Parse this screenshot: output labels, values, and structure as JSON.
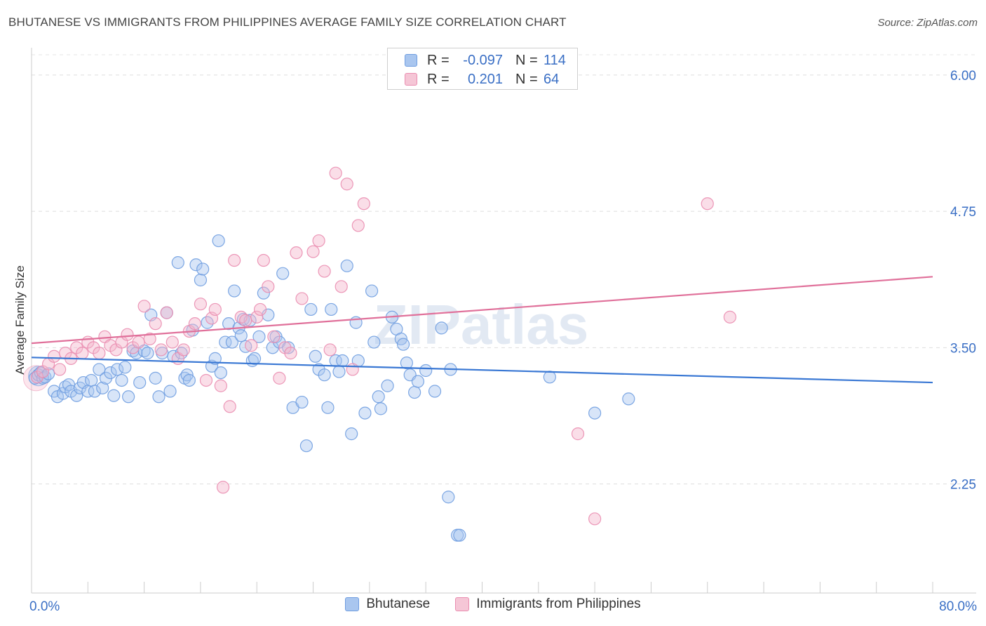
{
  "title": "BHUTANESE VS IMMIGRANTS FROM PHILIPPINES AVERAGE FAMILY SIZE CORRELATION CHART",
  "source": "Source: ZipAtlas.com",
  "watermark": "ZIPatlas",
  "legend_stats": {
    "rows": [
      {
        "r_label": "R =",
        "r_value": "-0.097",
        "n_label": "N =",
        "n_value": "114"
      },
      {
        "r_label": "R =",
        "r_value": "0.201",
        "n_label": "N =",
        "n_value": "64"
      }
    ]
  },
  "colors": {
    "blue_fill": "#a9c6ef",
    "blue_stroke": "#6f9de0",
    "blue_line": "#3a78d4",
    "pink_fill": "#f5b6cb",
    "pink_stroke": "#ea8db0",
    "pink_line": "#e0709a",
    "grid": "#dddddd",
    "tick_label": "#3a6fc5"
  },
  "chart_data": {
    "type": "scatter",
    "xlabel": "",
    "ylabel": "Average Family Size",
    "xlim": [
      0,
      80
    ],
    "ylim": [
      1.25,
      6.25
    ],
    "x_tick_labels": [
      {
        "value": 0,
        "label": "0.0%"
      },
      {
        "value": 80,
        "label": "80.0%"
      }
    ],
    "y_ticks": [
      {
        "value": 2.25,
        "label": "2.25"
      },
      {
        "value": 3.5,
        "label": "3.50"
      },
      {
        "value": 4.75,
        "label": "4.75"
      },
      {
        "value": 6.0,
        "label": "6.00"
      }
    ],
    "grid": "horizontal-dashed",
    "legend_position": "bottom-center",
    "series": [
      {
        "name": "Bhutanese",
        "color_key": "blue",
        "trend": {
          "x": [
            0,
            80
          ],
          "y": [
            3.41,
            3.18
          ]
        },
        "points": [
          [
            0.3,
            3.22
          ],
          [
            0.6,
            3.25
          ],
          [
            0.8,
            3.27
          ],
          [
            1.0,
            3.22
          ],
          [
            1.2,
            3.23
          ],
          [
            1.5,
            3.26
          ],
          [
            2.0,
            3.1
          ],
          [
            2.3,
            3.05
          ],
          [
            2.8,
            3.08
          ],
          [
            3.0,
            3.14
          ],
          [
            3.3,
            3.16
          ],
          [
            3.5,
            3.1
          ],
          [
            4.0,
            3.06
          ],
          [
            4.3,
            3.13
          ],
          [
            4.6,
            3.18
          ],
          [
            5.0,
            3.1
          ],
          [
            5.3,
            3.2
          ],
          [
            5.6,
            3.1
          ],
          [
            6.0,
            3.3
          ],
          [
            6.3,
            3.13
          ],
          [
            6.6,
            3.22
          ],
          [
            7.0,
            3.27
          ],
          [
            7.3,
            3.06
          ],
          [
            7.6,
            3.3
          ],
          [
            8.0,
            3.2
          ],
          [
            8.3,
            3.32
          ],
          [
            8.6,
            3.05
          ],
          [
            9.0,
            3.47
          ],
          [
            9.3,
            3.45
          ],
          [
            9.6,
            3.18
          ],
          [
            10.0,
            3.47
          ],
          [
            10.3,
            3.45
          ],
          [
            10.6,
            3.8
          ],
          [
            11.0,
            3.22
          ],
          [
            11.3,
            3.05
          ],
          [
            11.6,
            3.45
          ],
          [
            12.0,
            3.82
          ],
          [
            12.3,
            3.1
          ],
          [
            12.6,
            3.42
          ],
          [
            13.0,
            4.28
          ],
          [
            13.3,
            3.45
          ],
          [
            13.6,
            3.22
          ],
          [
            13.8,
            3.25
          ],
          [
            14.0,
            3.2
          ],
          [
            14.3,
            3.66
          ],
          [
            14.6,
            4.26
          ],
          [
            15.0,
            4.12
          ],
          [
            15.2,
            4.22
          ],
          [
            15.6,
            3.73
          ],
          [
            16.0,
            3.33
          ],
          [
            16.3,
            3.4
          ],
          [
            16.6,
            4.48
          ],
          [
            16.8,
            3.27
          ],
          [
            17.2,
            3.55
          ],
          [
            17.5,
            3.72
          ],
          [
            17.8,
            3.55
          ],
          [
            18.0,
            4.02
          ],
          [
            18.4,
            3.68
          ],
          [
            18.6,
            3.61
          ],
          [
            18.8,
            3.76
          ],
          [
            19.0,
            3.51
          ],
          [
            19.4,
            3.75
          ],
          [
            19.6,
            3.38
          ],
          [
            19.8,
            3.4
          ],
          [
            20.2,
            3.6
          ],
          [
            20.6,
            4.0
          ],
          [
            21.0,
            3.8
          ],
          [
            21.4,
            3.5
          ],
          [
            21.7,
            3.6
          ],
          [
            22.0,
            3.55
          ],
          [
            22.3,
            4.18
          ],
          [
            22.8,
            3.5
          ],
          [
            23.2,
            2.95
          ],
          [
            24.0,
            3.0
          ],
          [
            24.4,
            2.6
          ],
          [
            24.8,
            3.85
          ],
          [
            25.2,
            3.42
          ],
          [
            25.5,
            3.3
          ],
          [
            26.0,
            3.25
          ],
          [
            26.3,
            2.95
          ],
          [
            26.6,
            3.85
          ],
          [
            27.0,
            3.38
          ],
          [
            27.3,
            3.28
          ],
          [
            27.6,
            3.38
          ],
          [
            28.0,
            4.25
          ],
          [
            28.4,
            2.71
          ],
          [
            28.8,
            3.73
          ],
          [
            29.0,
            3.38
          ],
          [
            29.6,
            2.9
          ],
          [
            30.2,
            4.02
          ],
          [
            30.4,
            3.55
          ],
          [
            30.8,
            3.05
          ],
          [
            31.0,
            2.94
          ],
          [
            31.6,
            3.15
          ],
          [
            32.0,
            3.78
          ],
          [
            32.4,
            3.67
          ],
          [
            32.8,
            3.58
          ],
          [
            33.0,
            3.53
          ],
          [
            33.3,
            3.36
          ],
          [
            33.6,
            3.25
          ],
          [
            34.0,
            3.09
          ],
          [
            34.3,
            3.19
          ],
          [
            35.0,
            3.29
          ],
          [
            35.8,
            3.1
          ],
          [
            36.4,
            3.68
          ],
          [
            37.0,
            2.13
          ],
          [
            37.2,
            3.3
          ],
          [
            37.8,
            1.78
          ],
          [
            38.0,
            1.78
          ],
          [
            46.0,
            3.23
          ],
          [
            50.0,
            2.9
          ],
          [
            53.0,
            3.03
          ]
        ]
      },
      {
        "name": "Immigrants from Philippines",
        "color_key": "pink",
        "trend": {
          "x": [
            0,
            80
          ],
          "y": [
            3.54,
            4.15
          ]
        },
        "points": [
          [
            0.5,
            3.23
          ],
          [
            1.0,
            3.28
          ],
          [
            1.5,
            3.35
          ],
          [
            2.0,
            3.42
          ],
          [
            2.5,
            3.3
          ],
          [
            3.0,
            3.45
          ],
          [
            3.5,
            3.4
          ],
          [
            4.0,
            3.5
          ],
          [
            4.5,
            3.45
          ],
          [
            5.0,
            3.55
          ],
          [
            5.5,
            3.5
          ],
          [
            6.0,
            3.45
          ],
          [
            6.5,
            3.6
          ],
          [
            7.0,
            3.52
          ],
          [
            7.5,
            3.48
          ],
          [
            8.0,
            3.55
          ],
          [
            8.5,
            3.62
          ],
          [
            9.0,
            3.5
          ],
          [
            9.5,
            3.55
          ],
          [
            10.0,
            3.88
          ],
          [
            10.5,
            3.58
          ],
          [
            11.0,
            3.72
          ],
          [
            11.5,
            3.48
          ],
          [
            12.0,
            3.82
          ],
          [
            12.5,
            3.55
          ],
          [
            13.0,
            3.4
          ],
          [
            13.5,
            3.48
          ],
          [
            14.0,
            3.65
          ],
          [
            14.5,
            3.72
          ],
          [
            15.0,
            3.9
          ],
          [
            15.5,
            3.2
          ],
          [
            16.0,
            3.77
          ],
          [
            16.3,
            3.85
          ],
          [
            16.8,
            3.15
          ],
          [
            17.0,
            2.22
          ],
          [
            17.6,
            2.96
          ],
          [
            18.0,
            4.3
          ],
          [
            18.6,
            3.78
          ],
          [
            19.0,
            3.75
          ],
          [
            19.5,
            3.52
          ],
          [
            20.0,
            3.78
          ],
          [
            20.3,
            3.85
          ],
          [
            20.6,
            4.3
          ],
          [
            21.0,
            4.06
          ],
          [
            21.5,
            3.6
          ],
          [
            22.0,
            3.22
          ],
          [
            22.5,
            3.5
          ],
          [
            23.0,
            3.45
          ],
          [
            23.5,
            4.37
          ],
          [
            24.0,
            3.95
          ],
          [
            25.0,
            4.38
          ],
          [
            25.5,
            4.48
          ],
          [
            26.0,
            4.2
          ],
          [
            26.5,
            3.48
          ],
          [
            27.0,
            5.1
          ],
          [
            27.5,
            4.06
          ],
          [
            28.0,
            5.0
          ],
          [
            28.5,
            3.3
          ],
          [
            29.0,
            4.62
          ],
          [
            29.5,
            4.82
          ],
          [
            48.5,
            2.71
          ],
          [
            50.0,
            1.93
          ],
          [
            60.0,
            4.82
          ],
          [
            62.0,
            3.78
          ]
        ]
      }
    ]
  }
}
